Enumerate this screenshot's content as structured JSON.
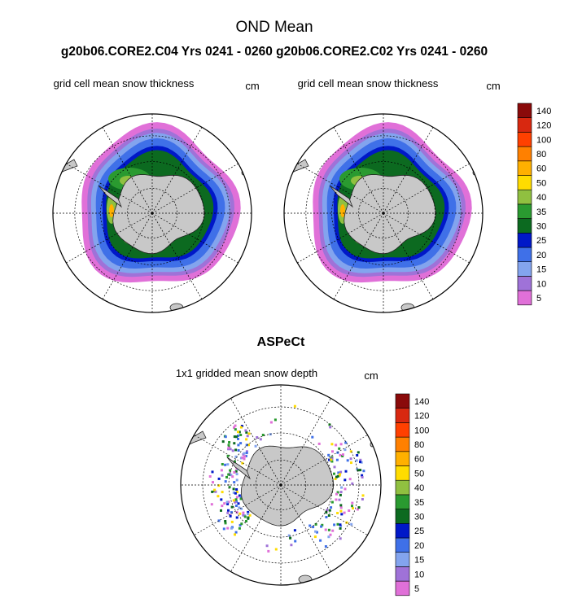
{
  "chart_data": {
    "type": "heatmap",
    "title": "OND Mean",
    "subtitle": "g20b06.CORE2.C04  Yrs 0241 - 0260 g20b06.CORE2.C02  Yrs 0241 - 0260",
    "bottom_title": "ASPeCt",
    "colorbar": {
      "levels": [
        "5",
        "10",
        "15",
        "20",
        "25",
        "30",
        "35",
        "40",
        "50",
        "60",
        "80",
        "100",
        "120",
        "140"
      ],
      "colors": [
        "#e070d8",
        "#9f72d8",
        "#83a4ee",
        "#3f70e8",
        "#0018c8",
        "#0c6a20",
        "#2a9a30",
        "#90c040",
        "#ffdc00",
        "#ffb000",
        "#ff8000",
        "#ff4000",
        "#d82810",
        "#8a0a0a"
      ]
    },
    "panels": [
      {
        "label": "grid cell mean snow thickness",
        "units": "cm",
        "source": "g20b06.CORE2.C04"
      },
      {
        "label": "grid cell mean snow thickness",
        "units": "cm",
        "source": "g20b06.CORE2.C02"
      },
      {
        "label": "1x1 gridded mean snow depth",
        "units": "cm",
        "source": "ASPeCt"
      }
    ]
  }
}
